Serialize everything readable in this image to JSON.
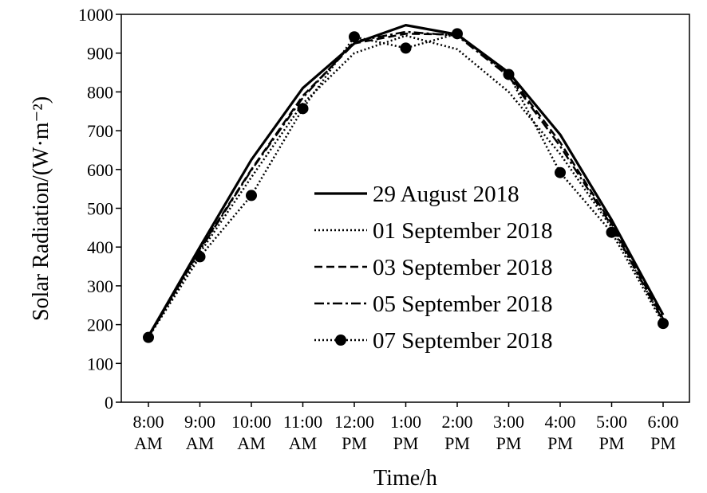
{
  "chart_data": {
    "type": "line",
    "title": "",
    "xlabel": "Time/h",
    "ylabel": "Solar Radiation/(W·m⁻²)",
    "ylim": [
      0,
      1000
    ],
    "yticks": [
      0,
      100,
      200,
      300,
      400,
      500,
      600,
      700,
      800,
      900,
      1000
    ],
    "grid": false,
    "legend_position": "center-right",
    "categories": [
      [
        "8:00",
        "AM"
      ],
      [
        "9:00",
        "AM"
      ],
      [
        "10:00",
        "AM"
      ],
      [
        "11:00",
        "AM"
      ],
      [
        "12:00",
        "PM"
      ],
      [
        "1:00",
        "PM"
      ],
      [
        "2:00",
        "PM"
      ],
      [
        "3:00",
        "PM"
      ],
      [
        "4:00",
        "PM"
      ],
      [
        "5:00",
        "PM"
      ],
      [
        "6:00",
        "PM"
      ]
    ],
    "series": [
      {
        "name": "29 August 2018",
        "style": "solid",
        "marker": false,
        "color": "#000000",
        "values": [
          170,
          400,
          625,
          810,
          925,
          972,
          948,
          850,
          690,
          470,
          225
        ]
      },
      {
        "name": "01 September 2018",
        "style": "dotted",
        "marker": false,
        "color": "#000000",
        "values": [
          168,
          385,
          580,
          770,
          900,
          945,
          910,
          800,
          640,
          450,
          210
        ]
      },
      {
        "name": "03 September 2018",
        "style": "dashed",
        "marker": false,
        "color": "#000000",
        "values": [
          168,
          395,
          600,
          790,
          925,
          950,
          948,
          845,
          670,
          460,
          215
        ]
      },
      {
        "name": "05 September 2018",
        "style": "dashdot",
        "marker": false,
        "color": "#000000",
        "values": [
          168,
          392,
          598,
          785,
          930,
          955,
          945,
          840,
          660,
          455,
          210
        ]
      },
      {
        "name": "07 September 2018",
        "style": "dotted",
        "marker": true,
        "color": "#000000",
        "values": [
          167,
          375,
          533,
          757,
          942,
          913,
          950,
          845,
          592,
          438,
          203
        ]
      }
    ]
  }
}
